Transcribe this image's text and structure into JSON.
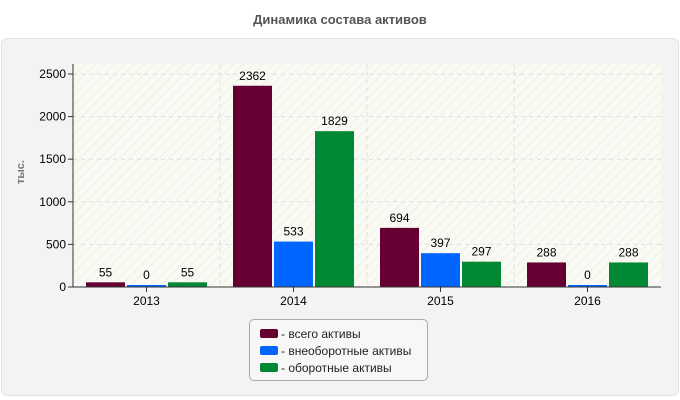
{
  "chart_data": {
    "type": "bar",
    "title": "Динамика состава активов",
    "xlabel": "",
    "ylabel": "тыс.",
    "categories": [
      "2013",
      "2014",
      "2015",
      "2016"
    ],
    "series": [
      {
        "name": "- всего активы",
        "color": "#660033",
        "values": [
          55,
          2362,
          694,
          288
        ]
      },
      {
        "name": "- внеоборотные активы",
        "color": "#0066ff",
        "values": [
          0,
          533,
          397,
          0
        ]
      },
      {
        "name": "- оборотные активы",
        "color": "#008833",
        "values": [
          55,
          1829,
          297,
          288
        ]
      }
    ],
    "ylim": [
      0,
      2600
    ],
    "yticks": [
      0,
      500,
      1000,
      1500,
      2000,
      2500
    ],
    "grid": true,
    "legend": "bottom-center"
  }
}
